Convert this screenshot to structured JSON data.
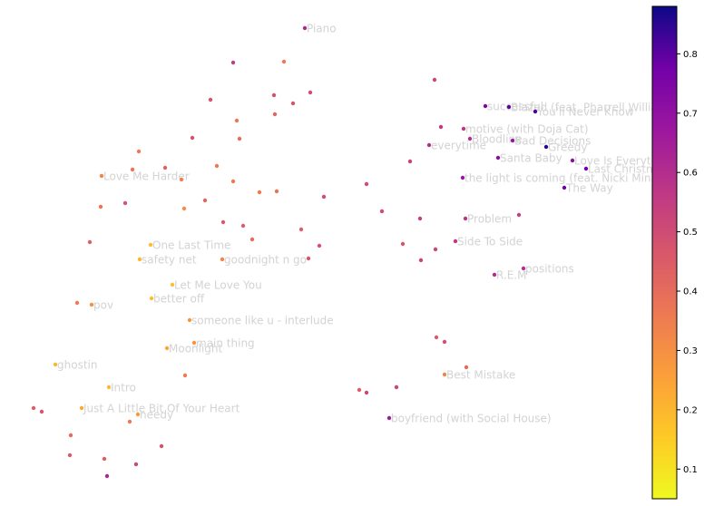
{
  "chart_data": {
    "type": "scatter",
    "title": "",
    "xlabel": "",
    "ylabel": "",
    "axes_visible": false,
    "grid": false,
    "colormap": "plasma_r",
    "colorbar": {
      "range": [
        0.05,
        0.88
      ],
      "ticks": [
        "0.1",
        "0.2",
        "0.3",
        "0.4",
        "0.5",
        "0.6",
        "0.7",
        "0.8"
      ]
    },
    "xlim": [
      0,
      710
    ],
    "ylim": [
      558,
      0
    ],
    "points": [
      {
        "x": 336,
        "y": 31,
        "c": 0.62,
        "label": "Piano"
      },
      {
        "x": 257,
        "y": 69,
        "c": 0.55,
        "label": ""
      },
      {
        "x": 313,
        "y": 68,
        "c": 0.36,
        "label": ""
      },
      {
        "x": 232,
        "y": 110,
        "c": 0.48,
        "label": ""
      },
      {
        "x": 302,
        "y": 105,
        "c": 0.48,
        "label": ""
      },
      {
        "x": 342,
        "y": 102,
        "c": 0.5,
        "label": ""
      },
      {
        "x": 323,
        "y": 114,
        "c": 0.47,
        "label": ""
      },
      {
        "x": 303,
        "y": 126,
        "c": 0.42,
        "label": ""
      },
      {
        "x": 261,
        "y": 133,
        "c": 0.36,
        "label": ""
      },
      {
        "x": 212,
        "y": 152,
        "c": 0.48,
        "label": ""
      },
      {
        "x": 264,
        "y": 153,
        "c": 0.4,
        "label": ""
      },
      {
        "x": 153,
        "y": 167,
        "c": 0.36,
        "label": ""
      },
      {
        "x": 182,
        "y": 185,
        "c": 0.43,
        "label": ""
      },
      {
        "x": 146,
        "y": 187,
        "c": 0.38,
        "label": ""
      },
      {
        "x": 239,
        "y": 183,
        "c": 0.36,
        "label": ""
      },
      {
        "x": 112,
        "y": 194,
        "c": 0.33,
        "label": "Love Me Harder"
      },
      {
        "x": 200,
        "y": 198,
        "c": 0.34,
        "label": ""
      },
      {
        "x": 257,
        "y": 200,
        "c": 0.36,
        "label": ""
      },
      {
        "x": 286,
        "y": 212,
        "c": 0.36,
        "label": ""
      },
      {
        "x": 305,
        "y": 211,
        "c": 0.38,
        "label": ""
      },
      {
        "x": 226,
        "y": 221,
        "c": 0.42,
        "label": ""
      },
      {
        "x": 357,
        "y": 217,
        "c": 0.5,
        "label": ""
      },
      {
        "x": 138,
        "y": 224,
        "c": 0.48,
        "label": ""
      },
      {
        "x": 111,
        "y": 228,
        "c": 0.38,
        "label": ""
      },
      {
        "x": 203,
        "y": 230,
        "c": 0.31,
        "label": ""
      },
      {
        "x": 246,
        "y": 245,
        "c": 0.46,
        "label": ""
      },
      {
        "x": 268,
        "y": 249,
        "c": 0.44,
        "label": ""
      },
      {
        "x": 332,
        "y": 253,
        "c": 0.44,
        "label": ""
      },
      {
        "x": 278,
        "y": 264,
        "c": 0.4,
        "label": ""
      },
      {
        "x": 99,
        "y": 267,
        "c": 0.44,
        "label": ""
      },
      {
        "x": 166,
        "y": 270,
        "c": 0.18,
        "label": "One Last Time"
      },
      {
        "x": 352,
        "y": 271,
        "c": 0.47,
        "label": ""
      },
      {
        "x": 154,
        "y": 286,
        "c": 0.2,
        "label": "safety net"
      },
      {
        "x": 245,
        "y": 286,
        "c": 0.33,
        "label": "goodnight n go"
      },
      {
        "x": 340,
        "y": 285,
        "c": 0.47,
        "label": ""
      },
      {
        "x": 190,
        "y": 314,
        "c": 0.18,
        "label": "Let Me Love You"
      },
      {
        "x": 167,
        "y": 329,
        "c": 0.18,
        "label": "better off"
      },
      {
        "x": 85,
        "y": 334,
        "c": 0.36,
        "label": ""
      },
      {
        "x": 101,
        "y": 336,
        "c": 0.3,
        "label": "pov"
      },
      {
        "x": 209,
        "y": 353,
        "c": 0.28,
        "label": "someone like u - interlude"
      },
      {
        "x": 214,
        "y": 378,
        "c": 0.29,
        "label": "main thing"
      },
      {
        "x": 184,
        "y": 384,
        "c": 0.24,
        "label": "Moonlight"
      },
      {
        "x": 61,
        "y": 402,
        "c": 0.2,
        "label": "ghostin"
      },
      {
        "x": 204,
        "y": 414,
        "c": 0.36,
        "label": ""
      },
      {
        "x": 120,
        "y": 427,
        "c": 0.19,
        "label": "Intro"
      },
      {
        "x": 90,
        "y": 450,
        "c": 0.23,
        "label": "Just A Little Bit Of Your Heart"
      },
      {
        "x": 37,
        "y": 450,
        "c": 0.44,
        "label": ""
      },
      {
        "x": 46,
        "y": 454,
        "c": 0.47,
        "label": ""
      },
      {
        "x": 152,
        "y": 457,
        "c": 0.27,
        "label": "needy"
      },
      {
        "x": 143,
        "y": 465,
        "c": 0.36,
        "label": ""
      },
      {
        "x": 78,
        "y": 480,
        "c": 0.4,
        "label": ""
      },
      {
        "x": 178,
        "y": 492,
        "c": 0.48,
        "label": ""
      },
      {
        "x": 77,
        "y": 502,
        "c": 0.46,
        "label": ""
      },
      {
        "x": 115,
        "y": 506,
        "c": 0.44,
        "label": ""
      },
      {
        "x": 150,
        "y": 512,
        "c": 0.52,
        "label": ""
      },
      {
        "x": 118,
        "y": 525,
        "c": 0.62,
        "label": ""
      },
      {
        "x": 479,
        "y": 88,
        "c": 0.52,
        "label": ""
      },
      {
        "x": 535,
        "y": 117,
        "c": 0.75,
        "label": "successful"
      },
      {
        "x": 561,
        "y": 118,
        "c": 0.8,
        "label": "Blazed (feat. Pharrell Williams)"
      },
      {
        "x": 590,
        "y": 123,
        "c": 0.82,
        "label": "You'll Never Know"
      },
      {
        "x": 486,
        "y": 140,
        "c": 0.56,
        "label": ""
      },
      {
        "x": 511,
        "y": 142,
        "c": 0.57,
        "label": "motive (with Doja Cat)"
      },
      {
        "x": 518,
        "y": 153,
        "c": 0.6,
        "label": "Bloodline"
      },
      {
        "x": 565,
        "y": 155,
        "c": 0.68,
        "label": "Bad Decisions"
      },
      {
        "x": 473,
        "y": 160,
        "c": 0.6,
        "label": "everytime"
      },
      {
        "x": 602,
        "y": 162,
        "c": 0.85,
        "label": "Greedy"
      },
      {
        "x": 549,
        "y": 174,
        "c": 0.72,
        "label": "Santa Baby"
      },
      {
        "x": 452,
        "y": 178,
        "c": 0.53,
        "label": ""
      },
      {
        "x": 631,
        "y": 177,
        "c": 0.72,
        "label": "Love Is Everything"
      },
      {
        "x": 646,
        "y": 186,
        "c": 0.78,
        "label": "Last Christmas"
      },
      {
        "x": 510,
        "y": 196,
        "c": 0.68,
        "label": "the light is coming (feat. Nicki Minaj)"
      },
      {
        "x": 622,
        "y": 207,
        "c": 0.78,
        "label": "The Way"
      },
      {
        "x": 404,
        "y": 203,
        "c": 0.5,
        "label": ""
      },
      {
        "x": 421,
        "y": 233,
        "c": 0.5,
        "label": ""
      },
      {
        "x": 463,
        "y": 241,
        "c": 0.54,
        "label": ""
      },
      {
        "x": 513,
        "y": 241,
        "c": 0.58,
        "label": "Problem"
      },
      {
        "x": 572,
        "y": 237,
        "c": 0.54,
        "label": ""
      },
      {
        "x": 444,
        "y": 269,
        "c": 0.47,
        "label": ""
      },
      {
        "x": 502,
        "y": 266,
        "c": 0.57,
        "label": "Side To Side"
      },
      {
        "x": 480,
        "y": 275,
        "c": 0.52,
        "label": ""
      },
      {
        "x": 464,
        "y": 287,
        "c": 0.52,
        "label": ""
      },
      {
        "x": 577,
        "y": 296,
        "c": 0.6,
        "label": "positions"
      },
      {
        "x": 545,
        "y": 303,
        "c": 0.6,
        "label": "R.E.M"
      },
      {
        "x": 481,
        "y": 372,
        "c": 0.45,
        "label": ""
      },
      {
        "x": 490,
        "y": 377,
        "c": 0.49,
        "label": ""
      },
      {
        "x": 514,
        "y": 405,
        "c": 0.4,
        "label": ""
      },
      {
        "x": 490,
        "y": 413,
        "c": 0.33,
        "label": "Best Mistake"
      },
      {
        "x": 396,
        "y": 430,
        "c": 0.44,
        "label": ""
      },
      {
        "x": 404,
        "y": 433,
        "c": 0.52,
        "label": ""
      },
      {
        "x": 437,
        "y": 427,
        "c": 0.52,
        "label": ""
      },
      {
        "x": 429,
        "y": 461,
        "c": 0.66,
        "label": "boyfriend (with Social House)"
      }
    ]
  }
}
